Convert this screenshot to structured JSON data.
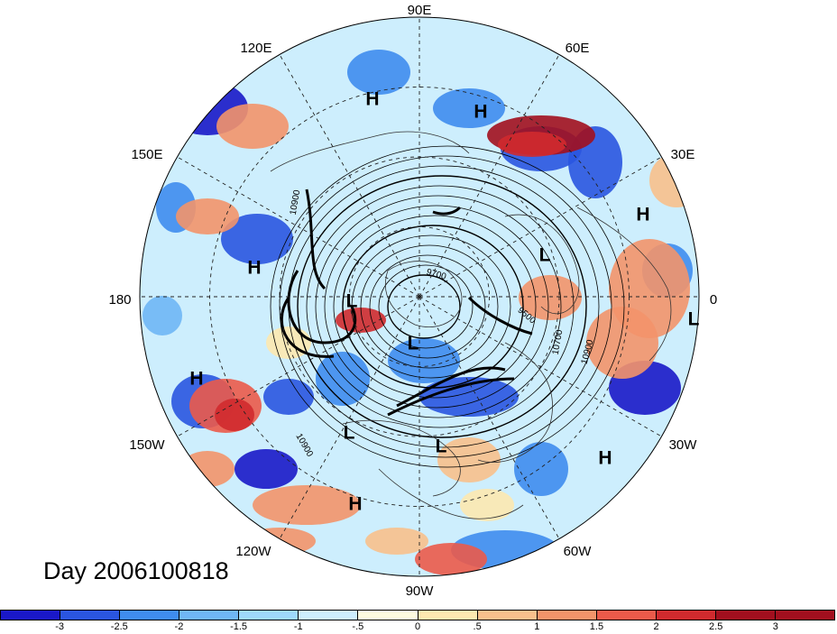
{
  "title": "Day 2006100818",
  "longitude_labels": [
    "90E",
    "60E",
    "30E",
    "0",
    "30W",
    "60W",
    "90W",
    "120W",
    "150W",
    "180",
    "150E",
    "120E"
  ],
  "pressure_centers": [
    {
      "label": "H"
    },
    {
      "label": "H"
    },
    {
      "label": "H"
    },
    {
      "label": "H"
    },
    {
      "label": "H"
    },
    {
      "label": "H"
    },
    {
      "label": "H"
    },
    {
      "label": "L"
    },
    {
      "label": "L"
    },
    {
      "label": "L"
    },
    {
      "label": "L"
    },
    {
      "label": "L"
    },
    {
      "label": "L"
    }
  ],
  "contour_labels": [
    "10900",
    "9700",
    "9500",
    "10700",
    "10900",
    "10900"
  ],
  "colorbar": {
    "tick_labels": [
      "-3",
      "-2.5",
      "-2",
      "-1.5",
      "-1",
      "-.5",
      "0",
      ".5",
      "1",
      "1.5",
      "2",
      "2.5",
      "3"
    ],
    "colors": [
      "#1a18c8",
      "#2a55e0",
      "#3f8cee",
      "#6fb6f5",
      "#9ed8fb",
      "#cdeefd",
      "#fdfbdf",
      "#fde8b0",
      "#f8c08c",
      "#f3946a",
      "#eb5a4a",
      "#d02a2e",
      "#a20f1e"
    ]
  }
}
